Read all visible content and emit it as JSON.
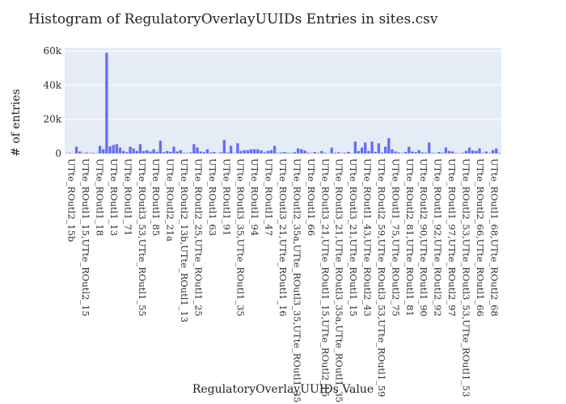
{
  "chart_data": {
    "type": "bar",
    "title": "Histogram of RegulatoryOverlayUUIDs Entries in sites.csv",
    "xlabel": "RegulatoryOverlayUUIDs Value",
    "ylabel": "# of entries",
    "ylim": [
      0,
      62000
    ],
    "yticks": [
      0,
      20000,
      40000,
      60000
    ],
    "ytick_labels": [
      "0",
      "20k",
      "40k",
      "60k"
    ],
    "grid": true,
    "bar_color": "#636efa",
    "plot_bg": "#e5ecf6",
    "xtick_labels": [
      "UTte_ROutl2_15b",
      "UTte_ROutl1_15,UTte_ROutl2_15",
      "UTte_ROutl1_18",
      "UTte_ROutl1_13",
      "UTte_ROutl1_71",
      "UTte_ROutl3_53,UTte_ROutl1_55",
      "UTte_ROutl1_85",
      "UTte_ROutl2_21a",
      "UTte_ROutl2_13b,UTte_ROutl1_13",
      "UTte_ROutl2_25,UTte_ROutl1_25",
      "UTte_ROutl1_63",
      "UTte_ROutl1_91",
      "UTte_ROutl3_35,UTte_ROutl1_35",
      "UTte_ROutl1_94",
      "UTte_ROutl1_47",
      "UTte_ROutl3_21,UTte_ROutl1_16",
      "UTte_ROutl2_35a,UTte_ROutl3_35,UTte_ROutl1_35",
      "UTte_ROutl1_66",
      "UTte_ROutl3_21,UTte_ROutl1_15,UTte_ROutl2_15",
      "UTte_ROutl3_21,UTte_ROutl3_35a,UTte_ROutl1_35",
      "UTte_ROutl3_21,UTte_ROutl1_15",
      "UTte_ROutl1_43,UTte_ROutl2_43",
      "UTte_ROutl2_59,UTte_ROutl3_53,UTte_ROutl1_59",
      "UTte_ROutl1_75,UTte_ROutl2_75",
      "UTte_ROutl2_81,UTte_ROutl1_81",
      "UTte_ROutl2_90,UTte_ROutl1_90",
      "UTte_ROutl1_92,UTte_ROutl2_92",
      "UTte_ROutl1_97,UTte_ROutl2_97",
      "UTte_ROutl2_53,UTte_ROutl3_53,UTte_ROutl1_53",
      "UTte_ROutl2_66,UTte_ROutl1_66",
      "UTte_ROutl1_68,UTte_ROutl2_68"
    ],
    "values": [
      200,
      300,
      150,
      4000,
      1200,
      300,
      600,
      250,
      400,
      200,
      4500,
      2500,
      59000,
      4200,
      5000,
      5500,
      3500,
      1500,
      800,
      4000,
      3000,
      1500,
      5500,
      1500,
      2000,
      1200,
      2500,
      1000,
      7500,
      800,
      1500,
      1000,
      4000,
      1200,
      2000,
      400,
      300,
      600,
      5500,
      3500,
      1200,
      900,
      2500,
      600,
      900,
      200,
      700,
      8000,
      600,
      4500,
      300,
      6000,
      1500,
      2000,
      2000,
      2500,
      2500,
      2500,
      1800,
      700,
      1500,
      2000,
      4500,
      400,
      600,
      900,
      400,
      300,
      800,
      3000,
      2500,
      1800,
      500,
      300,
      900,
      300,
      1500,
      400,
      200,
      3500,
      400,
      700,
      300,
      400,
      1000,
      200,
      7000,
      1500,
      3500,
      6500,
      1500,
      7000,
      1000,
      6000,
      600,
      4000,
      9000,
      2500,
      1200,
      600,
      300,
      900,
      4000,
      1200,
      800,
      2000,
      700,
      400,
      6500,
      400,
      300,
      900,
      500,
      3500,
      1500,
      1200,
      300,
      200,
      400,
      1500,
      3500,
      1800,
      1500,
      3000,
      400,
      1200,
      300,
      2000,
      3000,
      400
    ]
  }
}
